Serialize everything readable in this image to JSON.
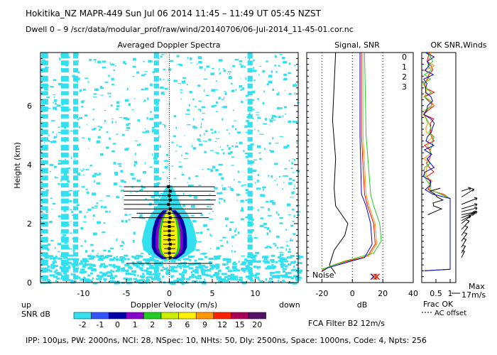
{
  "header": {
    "line1": "Hokitika_NZ  MAPR-449  Sun Jul 06 2014 11:45 – 11:49 UT 05:45 NZST",
    "line2": "Dwell  0 – 9   /scr/data/modular_prof/raw/wind/20140706/06-Jul-2014_11-45-01.cor.nc"
  },
  "footer": {
    "params": "IPP: 100µs,  PW: 2000ns,  NCI:  28,  NSpec: 10, NHts: 50,  Dly: 2500ns,  Space: 1000ns,  Code: 4,  Npts: 256",
    "filter": "FCA Filter B2 12m/s"
  },
  "colorbar": {
    "label_up": "up",
    "label_down": "down",
    "label_snr": "SNR dB",
    "levels": [
      "-2",
      "-1",
      "0",
      "1",
      "2",
      "3",
      "6",
      "9",
      "12",
      "15",
      "20"
    ],
    "colors": [
      "#33e0f0",
      "#3355ff",
      "#0000aa",
      "#8800cc",
      "#22cc22",
      "#ccee00",
      "#ffee00",
      "#ff9900",
      "#ff2200",
      "#aa0055",
      "#551166"
    ]
  },
  "chart_data": [
    {
      "type": "heatmap",
      "title": "Averaged Doppler Spectra",
      "xlabel": "Doppler Velocity (m/s)",
      "ylabel": "Height (km)",
      "xlim": [
        -15,
        15
      ],
      "ylim": [
        0,
        7.8
      ],
      "xticks": [
        -10,
        -5,
        0,
        5,
        10
      ],
      "yticks": [
        0,
        2,
        4,
        6
      ],
      "velocity_error_bars": [
        {
          "height": 0.65,
          "vmin": -5.0,
          "vmax": 5.0
        },
        {
          "height": 0.85,
          "vmin": -0.6,
          "vmax": 0.8
        },
        {
          "height": 1.0,
          "vmin": -0.6,
          "vmax": 0.7
        },
        {
          "height": 1.15,
          "vmin": -0.6,
          "vmax": 0.7
        },
        {
          "height": 1.3,
          "vmin": -0.7,
          "vmax": 0.7
        },
        {
          "height": 1.45,
          "vmin": -0.7,
          "vmax": 0.7
        },
        {
          "height": 1.6,
          "vmin": -0.7,
          "vmax": 0.6
        },
        {
          "height": 1.75,
          "vmin": -0.7,
          "vmax": 0.6
        },
        {
          "height": 1.9,
          "vmin": -0.7,
          "vmax": 0.6
        },
        {
          "height": 2.05,
          "vmin": -0.8,
          "vmax": 0.6
        },
        {
          "height": 2.2,
          "vmin": -4.4,
          "vmax": 4.6
        },
        {
          "height": 2.35,
          "vmin": -3.8,
          "vmax": 3.8
        },
        {
          "height": 2.5,
          "vmin": -5.3,
          "vmax": 5.0
        },
        {
          "height": 2.65,
          "vmin": -5.3,
          "vmax": 5.2
        },
        {
          "height": 2.8,
          "vmin": -5.3,
          "vmax": 5.4
        },
        {
          "height": 2.95,
          "vmin": -5.2,
          "vmax": 5.4
        },
        {
          "height": 3.1,
          "vmin": -5.3,
          "vmax": 5.3
        },
        {
          "height": 3.25,
          "vmin": -5.3,
          "vmax": 5.3
        }
      ],
      "velocity_points": [
        {
          "height": 0.85,
          "v": 0.1
        },
        {
          "height": 1.0,
          "v": 0.0
        },
        {
          "height": 1.15,
          "v": 0.0
        },
        {
          "height": 1.3,
          "v": 0.1
        },
        {
          "height": 1.45,
          "v": 0.0
        },
        {
          "height": 1.6,
          "v": 0.0
        },
        {
          "height": 1.75,
          "v": 0.0
        },
        {
          "height": 1.9,
          "v": 0.0
        },
        {
          "height": 2.05,
          "v": 0.0
        },
        {
          "height": 2.2,
          "v": 0.1
        },
        {
          "height": 2.35,
          "v": 0.0
        },
        {
          "height": 2.5,
          "v": 0.1
        },
        {
          "height": 2.65,
          "v": -0.1
        },
        {
          "height": 2.8,
          "v": 0.1
        },
        {
          "height": 2.95,
          "v": 0.0
        },
        {
          "height": 3.1,
          "v": 0.1
        },
        {
          "height": 3.25,
          "v": -0.1
        }
      ],
      "core_halfwidth": [
        {
          "height": 0.8,
          "w": 0.4
        },
        {
          "height": 0.9,
          "w": 0.9
        },
        {
          "height": 1.0,
          "w": 1.3
        },
        {
          "height": 1.2,
          "w": 1.6
        },
        {
          "height": 1.5,
          "w": 1.6
        },
        {
          "height": 1.8,
          "w": 1.5
        },
        {
          "height": 2.1,
          "w": 1.2
        },
        {
          "height": 2.3,
          "w": 0.8
        },
        {
          "height": 2.45,
          "w": 0.3
        }
      ],
      "cyan_halfwidth": [
        {
          "height": 0.75,
          "w": 0.8
        },
        {
          "height": 0.9,
          "w": 2.0
        },
        {
          "height": 1.1,
          "w": 3.0
        },
        {
          "height": 1.4,
          "w": 3.2
        },
        {
          "height": 1.7,
          "w": 3.0
        },
        {
          "height": 2.0,
          "w": 2.7
        },
        {
          "height": 2.3,
          "w": 2.2
        },
        {
          "height": 2.6,
          "w": 1.4
        },
        {
          "height": 3.0,
          "w": 0.8
        },
        {
          "height": 3.3,
          "w": 0.3
        }
      ]
    },
    {
      "type": "line",
      "title": "Signal, SNR",
      "xlabel": "dB",
      "xlim": [
        -30,
        40
      ],
      "ylim": [
        0,
        7.8
      ],
      "xticks": [
        -20,
        0,
        20,
        40
      ],
      "annotation": "Noise",
      "series": [
        {
          "name": "noise",
          "color": "#000000",
          "points": [
            [
              -11,
              0.3
            ],
            [
              -15,
              0.6
            ],
            [
              -12,
              1.1
            ],
            [
              -5,
              1.6
            ],
            [
              -3,
              2.0
            ],
            [
              -11,
              2.6
            ],
            [
              -12,
              3.2
            ],
            [
              -11,
              4.2
            ],
            [
              -13,
              5.5
            ],
            [
              -11,
              7.8
            ]
          ]
        },
        {
          "name": "signal-0",
          "color": "#ff0000",
          "points": [
            [
              -20,
              0.4
            ],
            [
              -15,
              0.55
            ],
            [
              -5,
              0.7
            ],
            [
              10,
              0.9
            ],
            [
              15,
              1.3
            ],
            [
              14,
              2.0
            ],
            [
              10,
              2.6
            ],
            [
              8,
              3.0
            ],
            [
              6,
              5.0
            ],
            [
              6,
              7.8
            ]
          ]
        },
        {
          "name": "signal-1",
          "color": "#ff9900",
          "points": [
            [
              -20,
              0.42
            ],
            [
              -14,
              0.57
            ],
            [
              -4,
              0.75
            ],
            [
              11,
              0.9
            ],
            [
              16,
              1.3
            ],
            [
              15,
              2.0
            ],
            [
              11,
              2.6
            ],
            [
              9,
              3.0
            ],
            [
              7,
              5.0
            ],
            [
              7,
              7.8
            ]
          ]
        },
        {
          "name": "signal-2",
          "color": "#22cc22",
          "points": [
            [
              -20,
              0.45
            ],
            [
              -12,
              0.6
            ],
            [
              0,
              0.8
            ],
            [
              14,
              1.0
            ],
            [
              19,
              1.4
            ],
            [
              18,
              2.0
            ],
            [
              14,
              2.6
            ],
            [
              12,
              3.0
            ],
            [
              9,
              5.0
            ],
            [
              8,
              7.8
            ]
          ]
        },
        {
          "name": "signal-3",
          "color": "#0000cc",
          "points": [
            [
              -20,
              0.38
            ],
            [
              -16,
              0.5
            ],
            [
              -6,
              0.65
            ],
            [
              8,
              0.85
            ],
            [
              13,
              1.3
            ],
            [
              12,
              2.0
            ],
            [
              9,
              2.6
            ],
            [
              6,
              3.0
            ],
            [
              5,
              5.0
            ],
            [
              5,
              7.8
            ]
          ]
        }
      ]
    },
    {
      "type": "line",
      "title": "OK SNR,Winds",
      "xlabel": "Frac OK",
      "xlim": [
        0,
        1.2
      ],
      "ylim": [
        0,
        7.8
      ],
      "xticks": [
        0.5,
        1
      ],
      "legend": [
        "0",
        "1",
        "2",
        "3"
      ],
      "legend_colors": [
        "#ff0000",
        "#ff9900",
        "#22cc22",
        "#0000cc"
      ],
      "note": "AC offset",
      "max_wind_label": "Max",
      "max_wind_value": "17m/s"
    }
  ]
}
